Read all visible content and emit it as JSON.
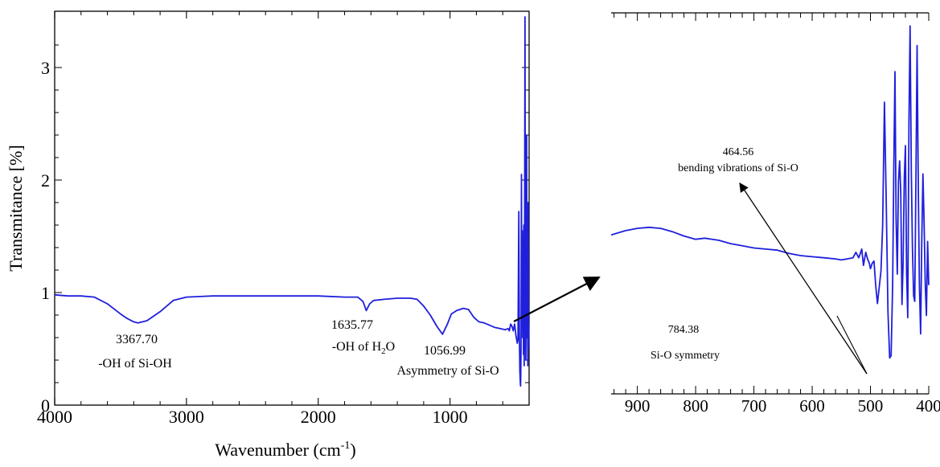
{
  "chart_data": [
    {
      "type": "line",
      "title": "",
      "xlabel": "Wavenumber (cm-1)",
      "xlabel_parts": {
        "base": "Wavenumber (cm",
        "sup": "-1",
        "tail": ")"
      },
      "ylabel": "Transmitance [%]",
      "xlim": [
        4000,
        400
      ],
      "x_reversed": true,
      "ylim": [
        0,
        3.5
      ],
      "x_ticks": [
        4000,
        3000,
        2000,
        1000
      ],
      "y_ticks": [
        0,
        1,
        2,
        3
      ],
      "grid": false,
      "series": [
        {
          "color": "#1f1fdc",
          "x": [
            4000,
            3900,
            3800,
            3700,
            3600,
            3500,
            3450,
            3400,
            3367.7,
            3300,
            3200,
            3100,
            3000,
            2800,
            2500,
            2200,
            2000,
            1800,
            1700,
            1660,
            1635.77,
            1610,
            1580,
            1500,
            1400,
            1300,
            1250,
            1200,
            1150,
            1100,
            1056.99,
            1020,
            990,
            950,
            900,
            860,
            820,
            780,
            740,
            700,
            660,
            620,
            580,
            560,
            550,
            545,
            540,
            530,
            520,
            510,
            500,
            490,
            484,
            478,
            474,
            470,
            466,
            464.56,
            461,
            458,
            455,
            452,
            449,
            446,
            443,
            440,
            437,
            434,
            431,
            428,
            425,
            422,
            419,
            416,
            413,
            410,
            407,
            404,
            402
          ],
          "y": [
            0.98,
            0.97,
            0.97,
            0.96,
            0.9,
            0.81,
            0.77,
            0.74,
            0.73,
            0.75,
            0.83,
            0.93,
            0.96,
            0.97,
            0.97,
            0.97,
            0.97,
            0.96,
            0.96,
            0.92,
            0.84,
            0.9,
            0.93,
            0.94,
            0.95,
            0.95,
            0.94,
            0.88,
            0.8,
            0.7,
            0.63,
            0.72,
            0.81,
            0.84,
            0.86,
            0.85,
            0.78,
            0.74,
            0.73,
            0.71,
            0.69,
            0.68,
            0.67,
            0.68,
            0.66,
            0.69,
            0.72,
            0.7,
            0.66,
            0.72,
            0.62,
            0.55,
            0.58,
            1.72,
            0.62,
            0.3,
            0.19,
            0.17,
            0.5,
            2.05,
            0.6,
            1.55,
            0.7,
            1.45,
            0.45,
            1.6,
            0.35,
            1.4,
            3.45,
            0.8,
            0.4,
            1.1,
            2.4,
            0.6,
            1.05,
            0.35,
            1.8,
            0.5,
            0.72
          ]
        }
      ],
      "annotations": [
        {
          "wavenumber": "3367.70",
          "label": "-OH of Si-OH"
        },
        {
          "wavenumber": "1635.77",
          "label_parts": {
            "base": "-OH of H",
            "sub": "2",
            "tail": "O"
          }
        },
        {
          "wavenumber": "1056.99",
          "label": "Asymmetry of Si-O"
        }
      ]
    },
    {
      "type": "line",
      "title": "",
      "xlabel": "",
      "ylabel": "",
      "xlim": [
        945,
        400
      ],
      "x_reversed": true,
      "x_ticks": [
        900,
        800,
        700,
        600,
        500,
        400
      ],
      "ylim": [
        0,
        3.5
      ],
      "grid": false,
      "series": [
        {
          "color": "#1f1fdc",
          "x": [
            945,
            920,
            900,
            880,
            860,
            840,
            820,
            800,
            784.38,
            760,
            740,
            720,
            700,
            680,
            660,
            640,
            620,
            600,
            580,
            560,
            550,
            540,
            530,
            525,
            520,
            515,
            512,
            508,
            505,
            502,
            500,
            497,
            494,
            491,
            488,
            485,
            482,
            479,
            476,
            473,
            470,
            467,
            464.56,
            462,
            460,
            458,
            456,
            454,
            452,
            450,
            448,
            446,
            444,
            442,
            440,
            438,
            436,
            434,
            432,
            430,
            428,
            426,
            424,
            422,
            420,
            418,
            416,
            414,
            412,
            410,
            408,
            406,
            404,
            402,
            400
          ],
          "y": [
            1.46,
            1.5,
            1.52,
            1.53,
            1.52,
            1.49,
            1.45,
            1.42,
            1.43,
            1.41,
            1.38,
            1.36,
            1.34,
            1.33,
            1.32,
            1.29,
            1.27,
            1.26,
            1.25,
            1.24,
            1.23,
            1.24,
            1.25,
            1.3,
            1.25,
            1.33,
            1.18,
            1.3,
            1.24,
            1.2,
            1.15,
            1.2,
            1.22,
            1.0,
            0.83,
            0.98,
            1.13,
            1.55,
            2.68,
            1.78,
            0.75,
            0.33,
            0.35,
            1.0,
            2.05,
            2.96,
            1.6,
            1.1,
            1.95,
            2.14,
            1.85,
            0.82,
            1.2,
            1.98,
            2.28,
            1.1,
            0.7,
            2.5,
            3.38,
            2.06,
            1.35,
            0.9,
            0.85,
            2.0,
            3.2,
            1.9,
            1.0,
            0.55,
            1.4,
            2.02,
            1.58,
            1.0,
            0.72,
            1.4,
            1.0
          ]
        }
      ],
      "annotations": [
        {
          "wavenumber": "784.38",
          "label": "Si-O symmetry"
        },
        {
          "wavenumber": "464.56",
          "label": "bending vibrations of Si-O"
        }
      ]
    }
  ]
}
